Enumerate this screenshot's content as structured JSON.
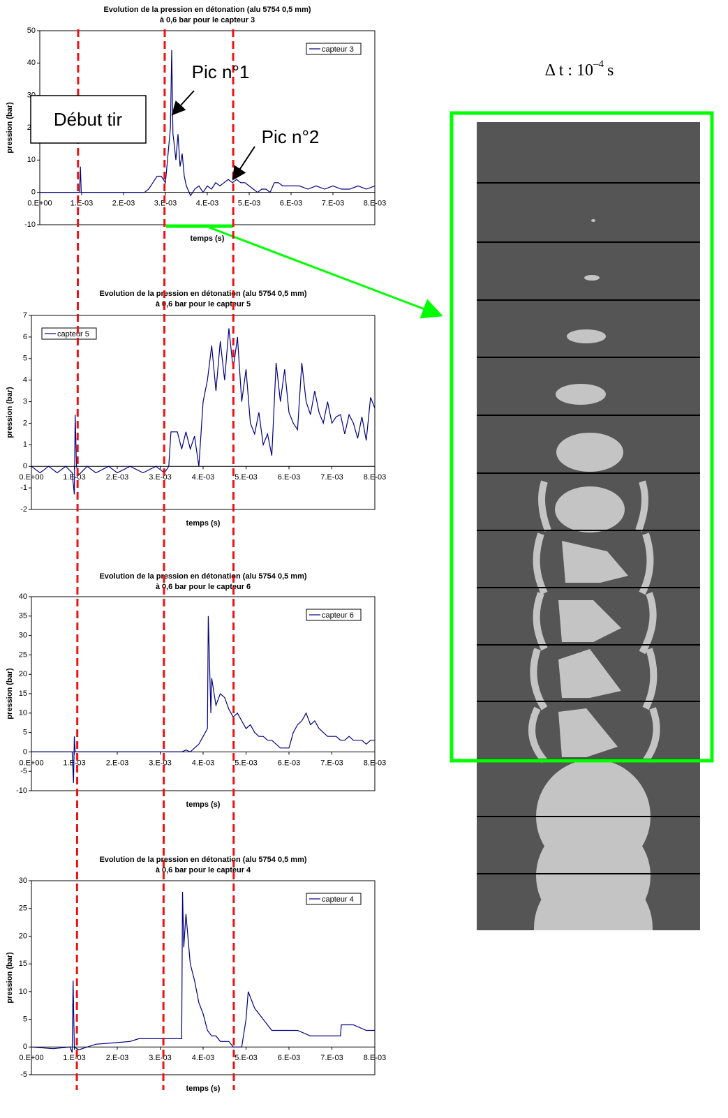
{
  "annotations": {
    "start": "Début tir",
    "peak1": "Pic n°1",
    "peak2": "Pic n°2",
    "timestep": "Δ t : 10",
    "timestep_exponent": "–4",
    "timestep_unit": "s"
  },
  "chart_data": [
    {
      "type": "line",
      "title": "Evolution de la pression en détonation (alu 5754 0,5 mm)",
      "subtitle": "à 0,6 bar pour le capteur 3",
      "x_label": "temps (s)",
      "y_label": "pression (bar)",
      "legend": "upper right",
      "x": [
        0,
        0.00095,
        0.00097,
        0.00099,
        0.0025,
        0.0026,
        0.0027,
        0.0028,
        0.0029,
        0.003,
        0.00312,
        0.00315,
        0.00318,
        0.0032,
        0.00325,
        0.0033,
        0.00335,
        0.0034,
        0.00345,
        0.0035,
        0.0036,
        0.0037,
        0.0038,
        0.0039,
        0.004,
        0.0041,
        0.0042,
        0.0043,
        0.0044,
        0.0045,
        0.0046,
        0.0047,
        0.0048,
        0.0049,
        0.005,
        0.0051,
        0.0052,
        0.0053,
        0.0054,
        0.0055,
        0.0056,
        0.0057,
        0.0058,
        0.006,
        0.0062,
        0.0064,
        0.0066,
        0.0068,
        0.007,
        0.0072,
        0.0074,
        0.0076,
        0.0078,
        0.008
      ],
      "series": [
        {
          "name": "capteur 3",
          "color": "#000080",
          "values": [
            0,
            0,
            8,
            0,
            0,
            1,
            3,
            5,
            5,
            3,
            20,
            44,
            18,
            16,
            10,
            18,
            8,
            12,
            5,
            2,
            -1,
            1,
            2,
            0,
            2,
            1,
            3,
            2,
            3,
            4,
            3,
            4,
            3,
            3,
            2,
            1,
            0,
            1,
            1,
            0,
            3,
            3,
            2,
            2,
            2,
            1,
            2,
            1,
            2,
            1,
            1,
            2,
            1,
            2
          ]
        }
      ],
      "xlim": [
        0,
        0.008
      ],
      "xticks": [
        {
          "value": 0,
          "label": "0.E+00"
        },
        {
          "value": 0.001,
          "label": "1.E-03"
        },
        {
          "value": 0.002,
          "label": "2.E-03"
        },
        {
          "value": 0.003,
          "label": "3.E-03"
        },
        {
          "value": 0.004,
          "label": "4.E-03"
        },
        {
          "value": 0.005,
          "label": "5.E-03"
        },
        {
          "value": 0.006,
          "label": "6.E-03"
        },
        {
          "value": 0.007,
          "label": "7.E-03"
        },
        {
          "value": 0.008,
          "label": "8.E-03"
        }
      ],
      "ylim": [
        -10,
        50
      ],
      "yticks": [
        -10,
        0,
        10,
        20,
        30,
        40,
        50
      ]
    },
    {
      "type": "line",
      "title": "Evolution de la pression en détonation (alu 5754 0,5 mm)",
      "subtitle": "à 0,6 bar pour le capteur 5",
      "x_label": "temps (s)",
      "y_label": "pression (bar)",
      "legend": "upper left",
      "x": [
        0,
        0.0002,
        0.0004,
        0.0006,
        0.0008,
        0.00095,
        0.001,
        0.00102,
        0.00105,
        0.0011,
        0.0013,
        0.0015,
        0.0018,
        0.002,
        0.0023,
        0.0026,
        0.0029,
        0.0031,
        0.0032,
        0.00325,
        0.0034,
        0.0035,
        0.0036,
        0.0037,
        0.0038,
        0.0039,
        0.004,
        0.0041,
        0.0042,
        0.0043,
        0.0044,
        0.0045,
        0.0046,
        0.0047,
        0.0048,
        0.0049,
        0.005,
        0.0051,
        0.0052,
        0.0053,
        0.0054,
        0.0055,
        0.0056,
        0.0057,
        0.0058,
        0.0059,
        0.006,
        0.0061,
        0.0062,
        0.0063,
        0.0064,
        0.0065,
        0.0066,
        0.0067,
        0.0068,
        0.0069,
        0.007,
        0.0071,
        0.0072,
        0.0073,
        0.0074,
        0.0075,
        0.0076,
        0.0077,
        0.0078,
        0.0079,
        0.008
      ],
      "series": [
        {
          "name": "capteur 5",
          "color": "#000080",
          "values": [
            0,
            -0.3,
            0,
            -0.3,
            0,
            -0.3,
            -1.3,
            2.4,
            0,
            -0.4,
            0,
            -0.3,
            0,
            -0.3,
            0,
            -0.3,
            0,
            -0.3,
            0,
            1.6,
            1.6,
            0.8,
            1.6,
            0.8,
            1.4,
            0,
            3,
            4,
            5.6,
            3.5,
            5.8,
            4,
            6.4,
            4.5,
            6,
            3,
            4.5,
            2,
            1.5,
            2.5,
            1,
            1.5,
            0.5,
            4.8,
            3,
            4.5,
            2.5,
            2,
            1.7,
            4.8,
            3,
            2.4,
            3.5,
            2.5,
            2,
            3,
            2,
            2.3,
            2.4,
            1.5,
            2.4,
            2,
            1.3,
            2.3,
            1.2,
            3.2,
            2.7
          ]
        }
      ],
      "xlim": [
        0,
        0.008
      ],
      "xticks": [
        {
          "value": 0,
          "label": "0.E+00"
        },
        {
          "value": 0.001,
          "label": "1.E-03"
        },
        {
          "value": 0.002,
          "label": "2.E-03"
        },
        {
          "value": 0.003,
          "label": "3.E-03"
        },
        {
          "value": 0.004,
          "label": "4.E-03"
        },
        {
          "value": 0.005,
          "label": "5.E-03"
        },
        {
          "value": 0.006,
          "label": "6.E-03"
        },
        {
          "value": 0.007,
          "label": "7.E-03"
        },
        {
          "value": 0.008,
          "label": "8.E-03"
        }
      ],
      "ylim": [
        -2,
        7
      ],
      "yticks": [
        -2,
        -1,
        0,
        1,
        2,
        3,
        4,
        5,
        6,
        7
      ]
    },
    {
      "type": "line",
      "title": "Evolution de la pression en détonation (alu 5754 0,5 mm)",
      "subtitle": "à 0,6 bar pour le capteur 6",
      "x_label": "temps (s)",
      "y_label": "pression (bar)",
      "legend": "upper right",
      "x": [
        0,
        0.00095,
        0.00098,
        0.001,
        0.00102,
        0.0035,
        0.0036,
        0.0037,
        0.0038,
        0.0039,
        0.004,
        0.0041,
        0.00412,
        0.00418,
        0.0042,
        0.0043,
        0.0044,
        0.0045,
        0.0046,
        0.0047,
        0.0048,
        0.0049,
        0.005,
        0.0051,
        0.0052,
        0.0053,
        0.0054,
        0.0055,
        0.0056,
        0.0057,
        0.0058,
        0.0059,
        0.006,
        0.0061,
        0.0062,
        0.0063,
        0.0064,
        0.0065,
        0.0066,
        0.0067,
        0.0068,
        0.0069,
        0.007,
        0.0071,
        0.0072,
        0.0073,
        0.0074,
        0.0075,
        0.0076,
        0.0077,
        0.0078,
        0.0079,
        0.008
      ],
      "series": [
        {
          "name": "capteur 6",
          "color": "#000080",
          "values": [
            0,
            0,
            -8,
            4,
            0,
            0,
            0.5,
            0,
            1,
            2,
            4,
            6,
            35,
            10,
            19,
            12,
            15,
            14,
            11,
            9,
            10,
            8,
            6,
            7,
            5,
            4,
            4,
            3,
            3,
            2,
            1,
            1,
            1,
            5,
            7,
            8,
            10,
            7,
            8,
            6,
            5,
            4,
            4,
            4,
            3,
            3,
            4,
            3,
            3,
            3,
            2,
            3,
            3
          ]
        }
      ],
      "xlim": [
        0,
        0.008
      ],
      "xticks": [
        {
          "value": 0,
          "label": "0.E+00"
        },
        {
          "value": 0.001,
          "label": "1.E-03"
        },
        {
          "value": 0.002,
          "label": "2.E-03"
        },
        {
          "value": 0.003,
          "label": "3.E-03"
        },
        {
          "value": 0.004,
          "label": "4.E-03"
        },
        {
          "value": 0.005,
          "label": "5.E-03"
        },
        {
          "value": 0.006,
          "label": "6.E-03"
        },
        {
          "value": 0.007,
          "label": "7.E-03"
        },
        {
          "value": 0.008,
          "label": "8.E-03"
        }
      ],
      "ylim": [
        -10,
        40
      ],
      "yticks": [
        -10,
        -5,
        0,
        5,
        10,
        15,
        20,
        25,
        30,
        35,
        40
      ]
    },
    {
      "type": "line",
      "title": "Evolution de la pression en détonation (alu 5754 0,5 mm)",
      "subtitle": "à 0,6 bar pour le capteur 4",
      "x_label": "temps (s)",
      "y_label": "pression (bar)",
      "legend": "upper right",
      "x": [
        0,
        0.0005,
        0.0009,
        0.00095,
        0.00097,
        0.001,
        0.0011,
        0.0013,
        0.0015,
        0.002,
        0.0023,
        0.0025,
        0.003,
        0.0035,
        0.00352,
        0.00355,
        0.0036,
        0.0037,
        0.0038,
        0.0039,
        0.004,
        0.0041,
        0.0042,
        0.0043,
        0.0044,
        0.0045,
        0.0046,
        0.0047,
        0.0048,
        0.0049,
        0.005,
        0.00505,
        0.0052,
        0.0054,
        0.0056,
        0.006,
        0.0062,
        0.0065,
        0.007,
        0.0072,
        0.00722,
        0.0075,
        0.0078,
        0.008
      ],
      "series": [
        {
          "name": "capteur 4",
          "color": "#000080",
          "values": [
            0,
            -0.3,
            0,
            -1,
            12,
            0,
            -0.5,
            0,
            0.5,
            0.8,
            1,
            1.5,
            1.5,
            1.5,
            28,
            18,
            24,
            15,
            12,
            8,
            6,
            3,
            2,
            2,
            1,
            1,
            1,
            0,
            0,
            0,
            5,
            10,
            7,
            5,
            3,
            3,
            3,
            2,
            2,
            2,
            4,
            4,
            3,
            3
          ]
        }
      ],
      "xlim": [
        0,
        0.008
      ],
      "xticks": [
        {
          "value": 0,
          "label": "0.E+00"
        },
        {
          "value": 0.001,
          "label": "1.E-03"
        },
        {
          "value": 0.002,
          "label": "2.E-03"
        },
        {
          "value": 0.003,
          "label": "3.E-03"
        },
        {
          "value": 0.004,
          "label": "4.E-03"
        },
        {
          "value": 0.005,
          "label": "5.E-03"
        },
        {
          "value": 0.006,
          "label": "6.E-03"
        },
        {
          "value": 0.007,
          "label": "7.E-03"
        },
        {
          "value": 0.008,
          "label": "8.E-03"
        }
      ],
      "ylim": [
        -5,
        30
      ],
      "yticks": [
        -5,
        0,
        5,
        10,
        15,
        20,
        25,
        30
      ]
    }
  ]
}
